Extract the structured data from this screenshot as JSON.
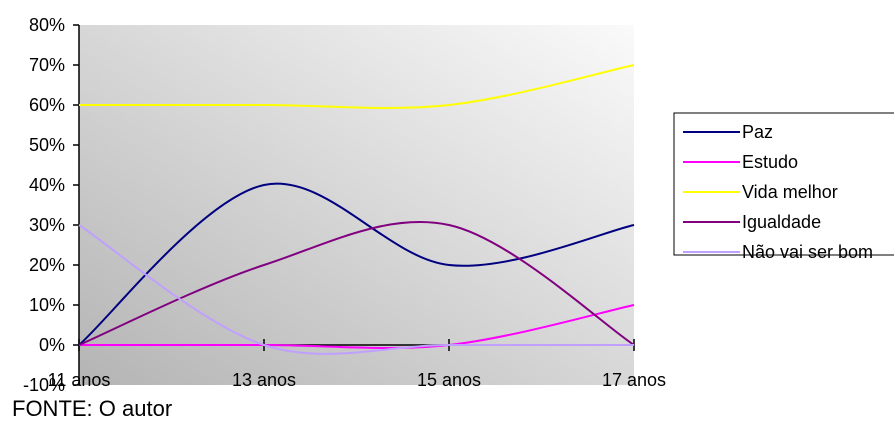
{
  "chart_data": {
    "type": "line",
    "categories": [
      "11 anos",
      "13 anos",
      "15 anos",
      "17 anos"
    ],
    "ylim": [
      -0.1,
      0.8
    ],
    "y_ticks": [
      "-10%",
      "0%",
      "10%",
      "20%",
      "30%",
      "40%",
      "50%",
      "60%",
      "70%",
      "80%"
    ],
    "y_tick_values": [
      -0.1,
      0,
      0.1,
      0.2,
      0.3,
      0.4,
      0.5,
      0.6,
      0.7,
      0.8
    ],
    "smooth": true,
    "grid": false,
    "legend_position": "right",
    "series": [
      {
        "name": "Paz",
        "values": [
          0,
          0.4,
          0.2,
          0.3
        ],
        "color": "#000080"
      },
      {
        "name": "Estudo",
        "values": [
          0,
          0,
          0,
          0.1
        ],
        "color": "#ff00ff"
      },
      {
        "name": "Vida melhor",
        "values": [
          0.6,
          0.6,
          0.6,
          0.7
        ],
        "color": "#ffff00"
      },
      {
        "name": "Igualdade",
        "values": [
          0,
          0.2,
          0.3,
          0
        ],
        "color": "#800080"
      },
      {
        "name": "Não vai ser bom",
        "values": [
          0.3,
          0,
          0,
          0
        ],
        "color": "#c0a0ff"
      }
    ]
  },
  "source_note": "FONTE: O autor"
}
